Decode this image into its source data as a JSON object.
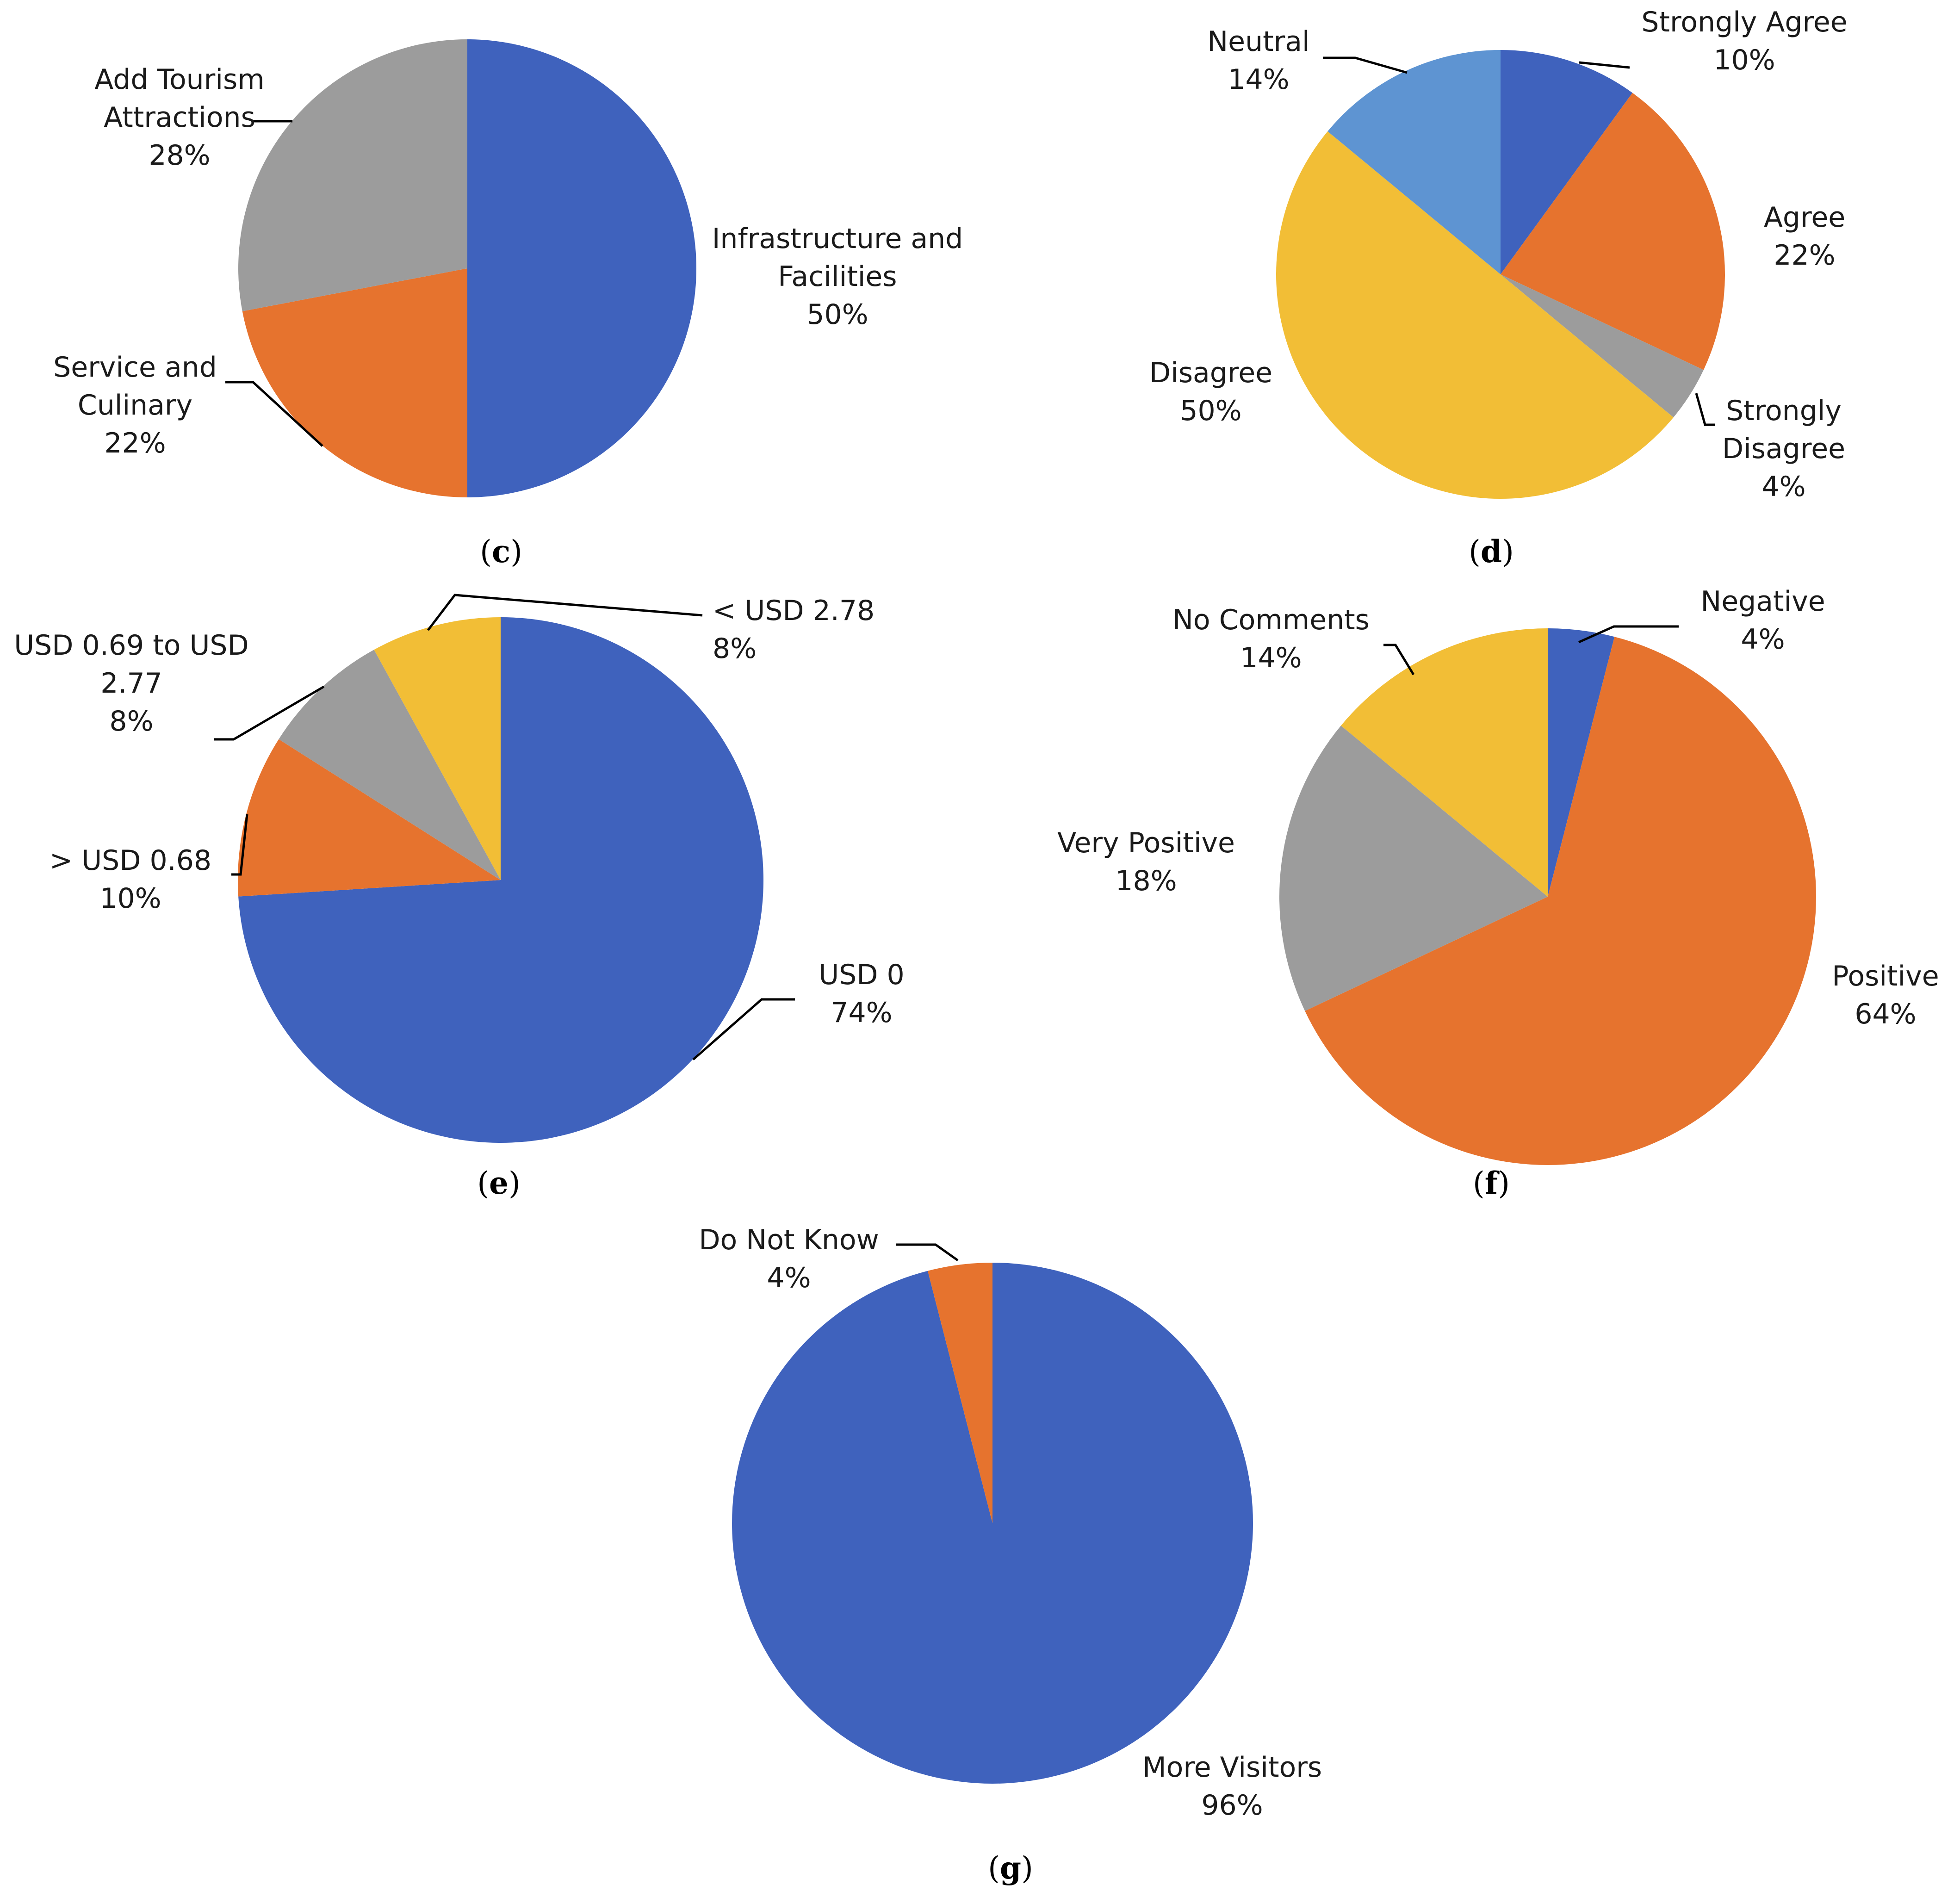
{
  "colors": {
    "blue": "#3F62BD",
    "orange": "#E6732E",
    "gray": "#9C9C9C",
    "yellow": "#F2BE36",
    "lightblue": "#5E94D2"
  },
  "chart_data": [
    {
      "panel": "c",
      "type": "pie",
      "slices": [
        {
          "lines": [
            "Infrastructure and",
            "Facilities"
          ],
          "pct_label": "50%",
          "value": 50,
          "color": "#3F62BD"
        },
        {
          "lines": [
            "Service and",
            "Culinary"
          ],
          "pct_label": "22%",
          "value": 22,
          "color": "#E6732E"
        },
        {
          "lines": [
            "Add Tourism",
            "Attractions"
          ],
          "pct_label": "28%",
          "value": 28,
          "color": "#9C9C9C"
        }
      ]
    },
    {
      "panel": "d",
      "type": "pie",
      "slices": [
        {
          "lines": [
            "Strongly Agree"
          ],
          "pct_label": "10%",
          "value": 10,
          "color": "#3F62BD"
        },
        {
          "lines": [
            "Agree"
          ],
          "pct_label": "22%",
          "value": 22,
          "color": "#E6732E"
        },
        {
          "lines": [
            "Strongly",
            "Disagree"
          ],
          "pct_label": "4%",
          "value": 4,
          "color": "#9C9C9C"
        },
        {
          "lines": [
            "Disagree"
          ],
          "pct_label": "50%",
          "value": 50,
          "color": "#F2BE36"
        },
        {
          "lines": [
            "Neutral"
          ],
          "pct_label": "14%",
          "value": 14,
          "color": "#5E94D2"
        }
      ]
    },
    {
      "panel": "e",
      "type": "pie",
      "slices": [
        {
          "lines": [
            "USD 0"
          ],
          "pct_label": "74%",
          "value": 74,
          "color": "#3F62BD"
        },
        {
          "lines": [
            "> USD 0.68"
          ],
          "pct_label": "10%",
          "value": 10,
          "color": "#E6732E"
        },
        {
          "lines": [
            "USD 0.69 to USD",
            "2.77"
          ],
          "pct_label": "8%",
          "value": 8,
          "color": "#9C9C9C"
        },
        {
          "lines": [
            "< USD 2.78"
          ],
          "pct_label": "8%",
          "value": 8,
          "color": "#F2BE36"
        }
      ]
    },
    {
      "panel": "f",
      "type": "pie",
      "slices": [
        {
          "lines": [
            "Negative"
          ],
          "pct_label": "4%",
          "value": 4,
          "color": "#3F62BD"
        },
        {
          "lines": [
            "Positive"
          ],
          "pct_label": "64%",
          "value": 64,
          "color": "#E6732E"
        },
        {
          "lines": [
            "Very Positive"
          ],
          "pct_label": "18%",
          "value": 18,
          "color": "#9C9C9C"
        },
        {
          "lines": [
            "No Comments"
          ],
          "pct_label": "14%",
          "value": 14,
          "color": "#F2BE36"
        }
      ]
    },
    {
      "panel": "g",
      "type": "pie",
      "slices": [
        {
          "lines": [
            "More Visitors"
          ],
          "pct_label": "96%",
          "value": 96,
          "color": "#3F62BD"
        },
        {
          "lines": [
            "Do Not Know"
          ],
          "pct_label": "4%",
          "value": 4,
          "color": "#E6732E"
        }
      ]
    }
  ]
}
